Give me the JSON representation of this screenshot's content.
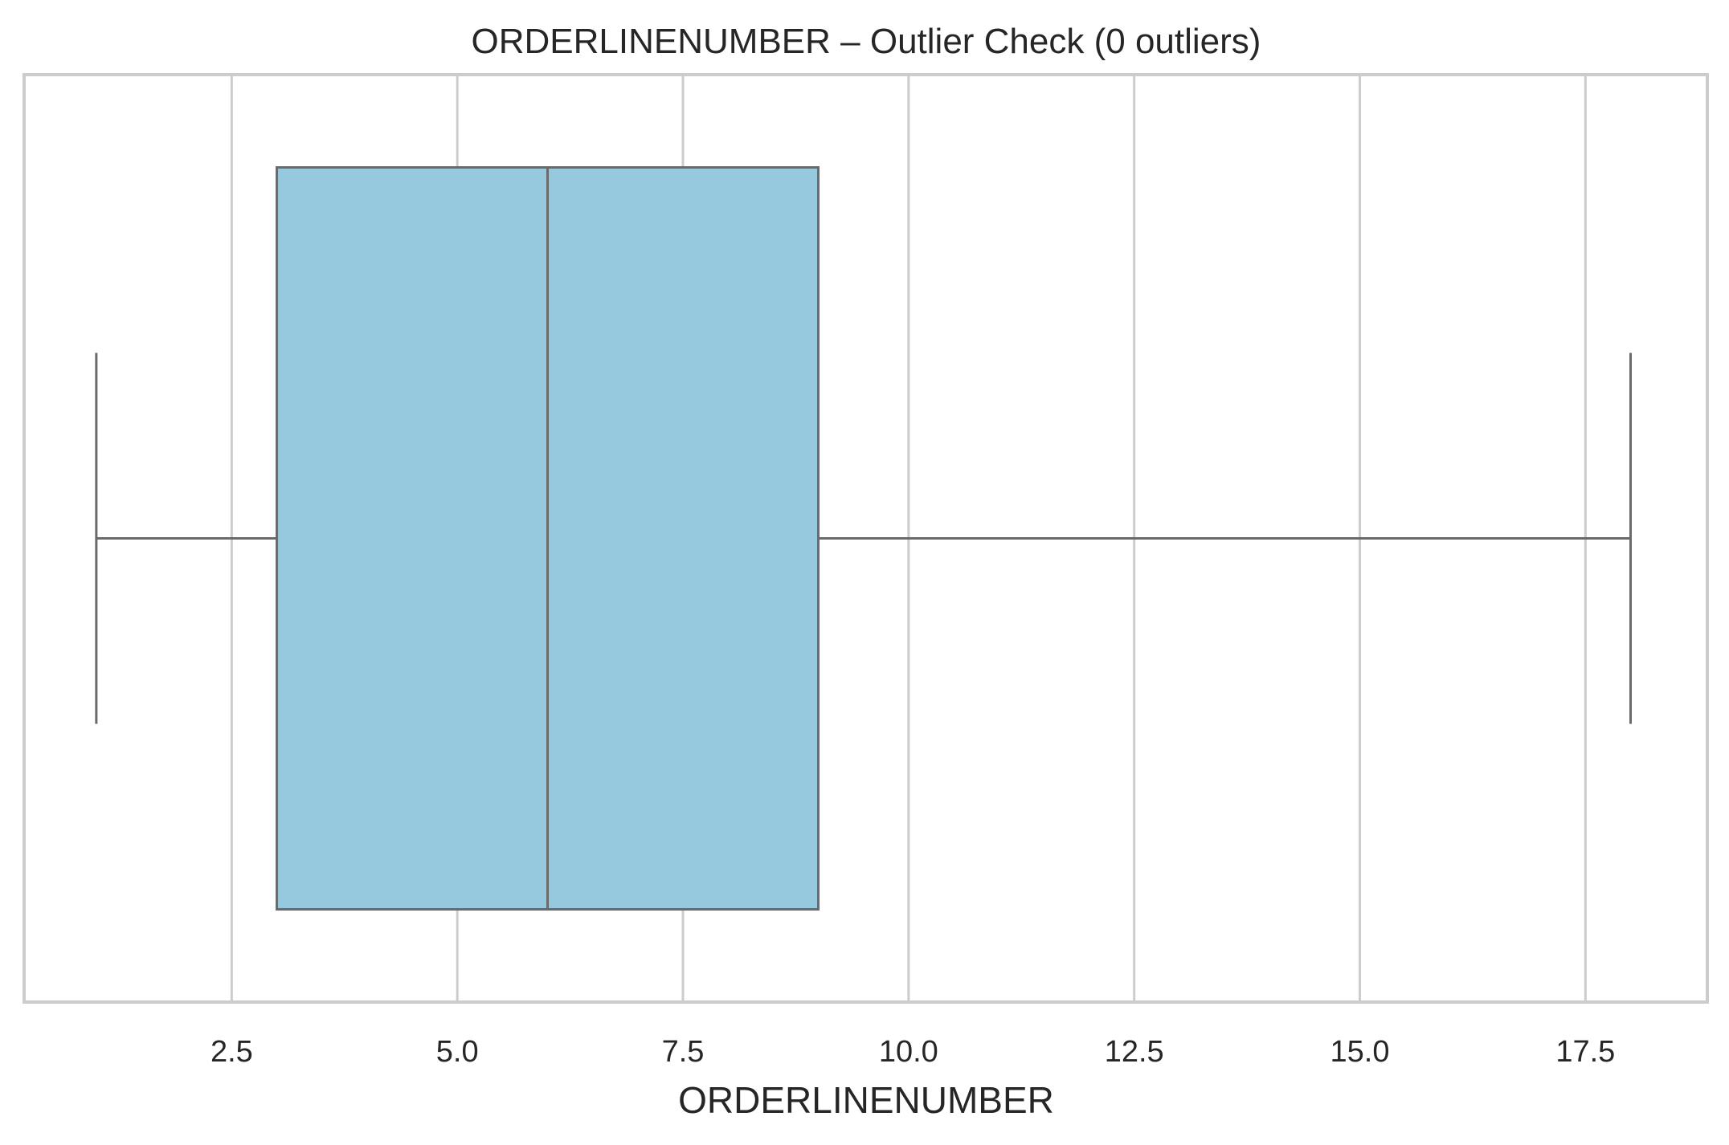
{
  "chart_data": {
    "type": "box",
    "title": "ORDERLINENUMBER – Outlier Check (0 outliers)",
    "xlabel": "ORDERLINENUMBER",
    "ylabel": "",
    "orientation": "horizontal",
    "xlim": [
      0.2,
      18.85
    ],
    "xticks": [
      2.5,
      5.0,
      7.5,
      10.0,
      12.5,
      15.0,
      17.5
    ],
    "xtick_labels": [
      "2.5",
      "5.0",
      "7.5",
      "10.0",
      "12.5",
      "15.0",
      "17.5"
    ],
    "grid": true,
    "box": {
      "whisker_low": 1,
      "q1": 3,
      "median": 6,
      "q3": 9,
      "whisker_high": 18,
      "outliers": []
    },
    "colors": {
      "box_fill": "#96c8de",
      "box_edge": "#6a6a6a",
      "grid": "#cccccc",
      "frame": "#cccccc",
      "text": "#262626"
    }
  }
}
